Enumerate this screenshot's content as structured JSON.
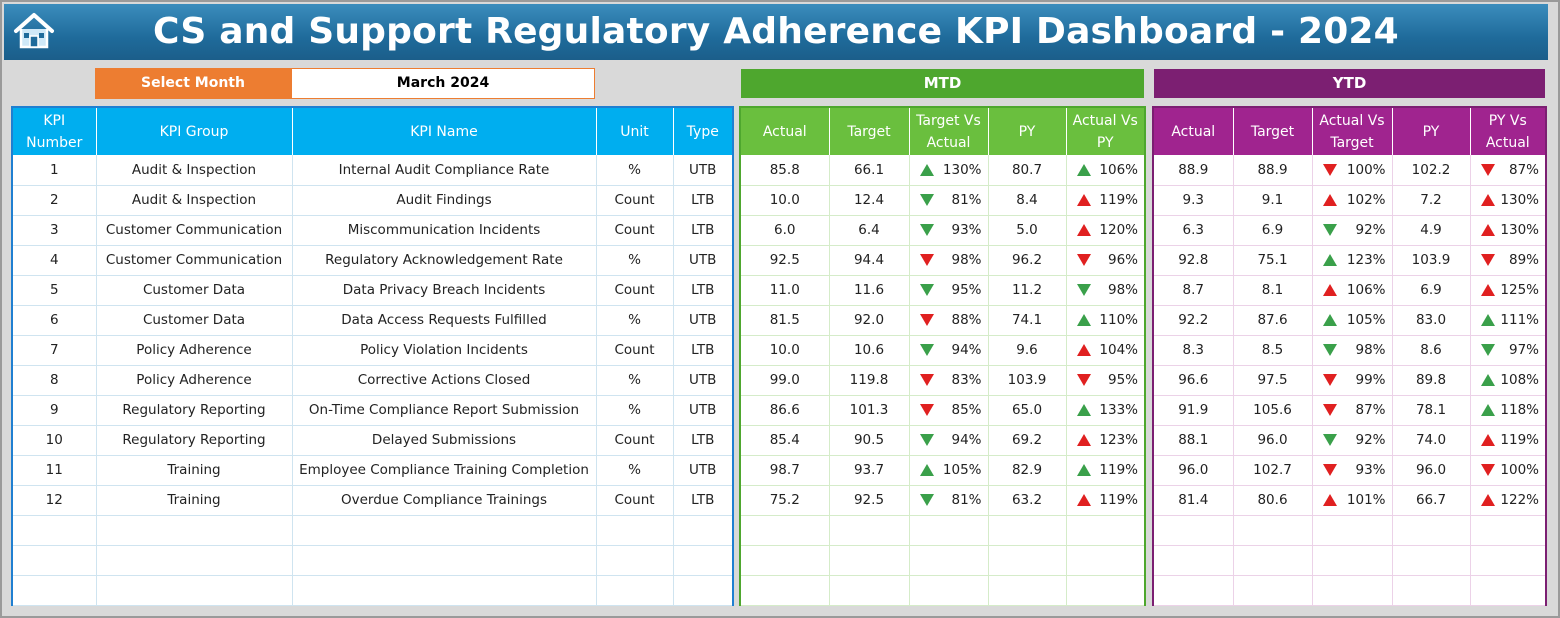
{
  "header": {
    "title": "CS and Support Regulatory Adherence KPI Dashboard - 2024",
    "home_icon": "home-icon"
  },
  "selector": {
    "label": "Select Month",
    "value": "March 2024"
  },
  "banners": {
    "mtd": "MTD",
    "ytd": "YTD"
  },
  "colors": {
    "accent_orange": "#ed7d31",
    "kpi_header": "#00aeef",
    "mtd_green": "#4ea72e",
    "ytd_purple": "#7c1f72",
    "up": "#3aa04a",
    "down": "#e02020"
  },
  "kpi_columns": [
    "KPI\nNumber",
    "KPI Group",
    "KPI Name",
    "Unit",
    "Type"
  ],
  "mtd_columns": [
    "Actual",
    "Target",
    "Target Vs\nActual",
    "PY",
    "Actual Vs\nPY"
  ],
  "ytd_columns": [
    "Actual",
    "Target",
    "Actual Vs\nTarget",
    "PY",
    "PY Vs\nActual"
  ],
  "rows": [
    {
      "num": "1",
      "group": "Audit & Inspection",
      "name": "Internal Audit Compliance Rate",
      "unit": "%",
      "type": "UTB",
      "mtd": {
        "actual": "85.8",
        "target": "66.1",
        "tva": "130%",
        "tva_icon": "up-green",
        "py": "80.7",
        "avp": "106%",
        "avp_icon": "up-green"
      },
      "ytd": {
        "actual": "88.9",
        "target": "88.9",
        "avt": "100%",
        "avt_icon": "down-red",
        "py": "102.2",
        "pva": "87%",
        "pva_icon": "down-red"
      }
    },
    {
      "num": "2",
      "group": "Audit & Inspection",
      "name": "Audit Findings",
      "unit": "Count",
      "type": "LTB",
      "mtd": {
        "actual": "10.0",
        "target": "12.4",
        "tva": "81%",
        "tva_icon": "down-green",
        "py": "8.4",
        "avp": "119%",
        "avp_icon": "up-red"
      },
      "ytd": {
        "actual": "9.3",
        "target": "9.1",
        "avt": "102%",
        "avt_icon": "up-red",
        "py": "7.2",
        "pva": "130%",
        "pva_icon": "up-red"
      }
    },
    {
      "num": "3",
      "group": "Customer Communication",
      "name": "Miscommunication Incidents",
      "unit": "Count",
      "type": "LTB",
      "mtd": {
        "actual": "6.0",
        "target": "6.4",
        "tva": "93%",
        "tva_icon": "down-green",
        "py": "5.0",
        "avp": "120%",
        "avp_icon": "up-red"
      },
      "ytd": {
        "actual": "6.3",
        "target": "6.9",
        "avt": "92%",
        "avt_icon": "down-green",
        "py": "4.9",
        "pva": "130%",
        "pva_icon": "up-red"
      }
    },
    {
      "num": "4",
      "group": "Customer Communication",
      "name": "Regulatory Acknowledgement Rate",
      "unit": "%",
      "type": "UTB",
      "mtd": {
        "actual": "92.5",
        "target": "94.4",
        "tva": "98%",
        "tva_icon": "down-red",
        "py": "96.2",
        "avp": "96%",
        "avp_icon": "down-red"
      },
      "ytd": {
        "actual": "92.8",
        "target": "75.1",
        "avt": "123%",
        "avt_icon": "up-green",
        "py": "103.9",
        "pva": "89%",
        "pva_icon": "down-red"
      }
    },
    {
      "num": "5",
      "group": "Customer Data",
      "name": "Data Privacy Breach Incidents",
      "unit": "Count",
      "type": "LTB",
      "mtd": {
        "actual": "11.0",
        "target": "11.6",
        "tva": "95%",
        "tva_icon": "down-green",
        "py": "11.2",
        "avp": "98%",
        "avp_icon": "down-green"
      },
      "ytd": {
        "actual": "8.7",
        "target": "8.1",
        "avt": "106%",
        "avt_icon": "up-red",
        "py": "6.9",
        "pva": "125%",
        "pva_icon": "up-red"
      }
    },
    {
      "num": "6",
      "group": "Customer Data",
      "name": "Data Access Requests Fulfilled",
      "unit": "%",
      "type": "UTB",
      "mtd": {
        "actual": "81.5",
        "target": "92.0",
        "tva": "88%",
        "tva_icon": "down-red",
        "py": "74.1",
        "avp": "110%",
        "avp_icon": "up-green"
      },
      "ytd": {
        "actual": "92.2",
        "target": "87.6",
        "avt": "105%",
        "avt_icon": "up-green",
        "py": "83.0",
        "pva": "111%",
        "pva_icon": "up-green"
      }
    },
    {
      "num": "7",
      "group": "Policy Adherence",
      "name": "Policy Violation Incidents",
      "unit": "Count",
      "type": "LTB",
      "mtd": {
        "actual": "10.0",
        "target": "10.6",
        "tva": "94%",
        "tva_icon": "down-green",
        "py": "9.6",
        "avp": "104%",
        "avp_icon": "up-red"
      },
      "ytd": {
        "actual": "8.3",
        "target": "8.5",
        "avt": "98%",
        "avt_icon": "down-green",
        "py": "8.6",
        "pva": "97%",
        "pva_icon": "down-green"
      }
    },
    {
      "num": "8",
      "group": "Policy Adherence",
      "name": "Corrective Actions Closed",
      "unit": "%",
      "type": "UTB",
      "mtd": {
        "actual": "99.0",
        "target": "119.8",
        "tva": "83%",
        "tva_icon": "down-red",
        "py": "103.9",
        "avp": "95%",
        "avp_icon": "down-red"
      },
      "ytd": {
        "actual": "96.6",
        "target": "97.5",
        "avt": "99%",
        "avt_icon": "down-red",
        "py": "89.8",
        "pva": "108%",
        "pva_icon": "up-green"
      }
    },
    {
      "num": "9",
      "group": "Regulatory Reporting",
      "name": "On-Time Compliance Report Submission",
      "unit": "%",
      "type": "UTB",
      "mtd": {
        "actual": "86.6",
        "target": "101.3",
        "tva": "85%",
        "tva_icon": "down-red",
        "py": "65.0",
        "avp": "133%",
        "avp_icon": "up-green"
      },
      "ytd": {
        "actual": "91.9",
        "target": "105.6",
        "avt": "87%",
        "avt_icon": "down-red",
        "py": "78.1",
        "pva": "118%",
        "pva_icon": "up-green"
      }
    },
    {
      "num": "10",
      "group": "Regulatory Reporting",
      "name": "Delayed Submissions",
      "unit": "Count",
      "type": "LTB",
      "mtd": {
        "actual": "85.4",
        "target": "90.5",
        "tva": "94%",
        "tva_icon": "down-green",
        "py": "69.2",
        "avp": "123%",
        "avp_icon": "up-red"
      },
      "ytd": {
        "actual": "88.1",
        "target": "96.0",
        "avt": "92%",
        "avt_icon": "down-green",
        "py": "74.0",
        "pva": "119%",
        "pva_icon": "up-red"
      }
    },
    {
      "num": "11",
      "group": "Training",
      "name": "Employee Compliance Training Completion",
      "unit": "%",
      "type": "UTB",
      "mtd": {
        "actual": "98.7",
        "target": "93.7",
        "tva": "105%",
        "tva_icon": "up-green",
        "py": "82.9",
        "avp": "119%",
        "avp_icon": "up-green"
      },
      "ytd": {
        "actual": "96.0",
        "target": "102.7",
        "avt": "93%",
        "avt_icon": "down-red",
        "py": "96.0",
        "pva": "100%",
        "pva_icon": "down-red"
      }
    },
    {
      "num": "12",
      "group": "Training",
      "name": "Overdue Compliance Trainings",
      "unit": "Count",
      "type": "LTB",
      "mtd": {
        "actual": "75.2",
        "target": "92.5",
        "tva": "81%",
        "tva_icon": "down-green",
        "py": "63.2",
        "avp": "119%",
        "avp_icon": "up-red"
      },
      "ytd": {
        "actual": "81.4",
        "target": "80.6",
        "avt": "101%",
        "avt_icon": "up-red",
        "py": "66.7",
        "pva": "122%",
        "pva_icon": "up-red"
      }
    }
  ]
}
